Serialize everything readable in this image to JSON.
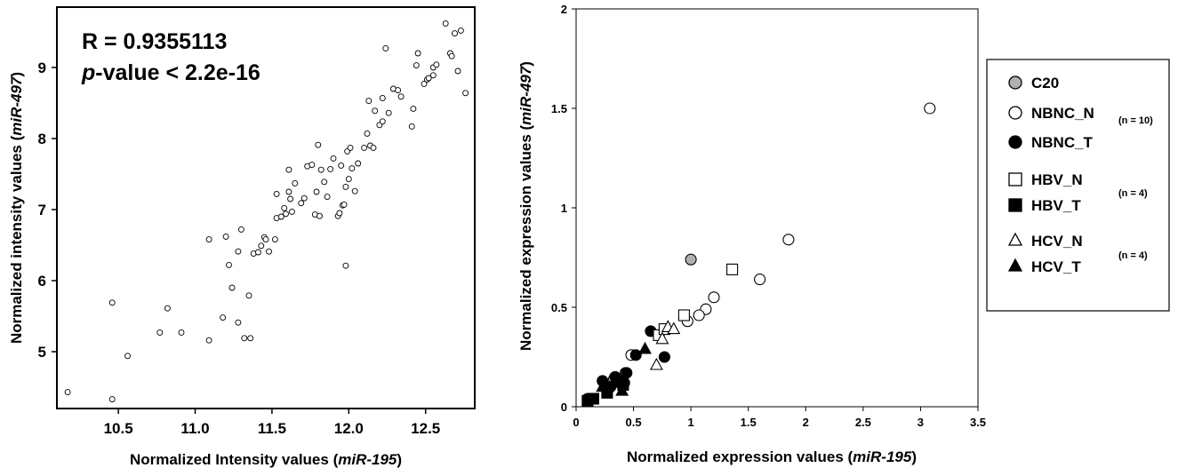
{
  "chart_data": [
    {
      "type": "scatter",
      "title": "",
      "xlabel_prefix": "Normalized Intensity values (",
      "xlabel_italic": "miR-195",
      "xlabel_suffix": ")",
      "ylabel_prefix": "Normalized intensity values (",
      "ylabel_italic": "miR-497",
      "ylabel_suffix": ")",
      "xlim": [
        10.1,
        12.82
      ],
      "ylim": [
        4.2,
        9.85
      ],
      "xticks": [
        10.5,
        11.0,
        11.5,
        12.0,
        12.5
      ],
      "xtick_labels": [
        "10.5",
        "11.0",
        "11.5",
        "12.0",
        "12.5"
      ],
      "yticks": [
        5,
        6,
        7,
        8,
        9
      ],
      "ytick_labels": [
        "5",
        "6",
        "7",
        "8",
        "9"
      ],
      "grid": false,
      "annotation_r": "R = 0.9355113",
      "annotation_p_italic": "p",
      "annotation_p_rest": "-value < 2.2e-16",
      "marker": "open-circle",
      "points": [
        [
          10.17,
          4.43
        ],
        [
          10.46,
          4.33
        ],
        [
          10.46,
          5.69
        ],
        [
          10.56,
          4.94
        ],
        [
          10.77,
          5.27
        ],
        [
          10.82,
          5.61
        ],
        [
          10.91,
          5.27
        ],
        [
          11.09,
          5.16
        ],
        [
          11.09,
          6.58
        ],
        [
          11.18,
          5.48
        ],
        [
          11.2,
          6.62
        ],
        [
          11.22,
          6.22
        ],
        [
          11.24,
          5.9
        ],
        [
          11.28,
          5.41
        ],
        [
          11.28,
          6.41
        ],
        [
          11.3,
          6.72
        ],
        [
          11.32,
          5.19
        ],
        [
          11.35,
          5.79
        ],
        [
          11.36,
          5.19
        ],
        [
          11.38,
          6.38
        ],
        [
          11.41,
          6.4
        ],
        [
          11.43,
          6.49
        ],
        [
          11.45,
          6.61
        ],
        [
          11.46,
          6.58
        ],
        [
          11.48,
          6.41
        ],
        [
          11.52,
          6.58
        ],
        [
          11.53,
          6.88
        ],
        [
          11.53,
          7.22
        ],
        [
          11.56,
          6.9
        ],
        [
          11.58,
          7.02
        ],
        [
          11.59,
          6.94
        ],
        [
          11.61,
          7.25
        ],
        [
          11.61,
          7.56
        ],
        [
          11.62,
          7.15
        ],
        [
          11.63,
          6.97
        ],
        [
          11.65,
          7.37
        ],
        [
          11.69,
          7.09
        ],
        [
          11.71,
          7.16
        ],
        [
          11.73,
          7.61
        ],
        [
          11.76,
          7.63
        ],
        [
          11.78,
          6.93
        ],
        [
          11.79,
          7.25
        ],
        [
          11.8,
          7.91
        ],
        [
          11.81,
          6.91
        ],
        [
          11.82,
          7.56
        ],
        [
          11.84,
          7.39
        ],
        [
          11.86,
          7.18
        ],
        [
          11.88,
          7.57
        ],
        [
          11.9,
          7.72
        ],
        [
          11.93,
          6.91
        ],
        [
          11.94,
          6.95
        ],
        [
          11.95,
          7.62
        ],
        [
          11.96,
          7.06
        ],
        [
          11.97,
          7.07
        ],
        [
          11.98,
          6.21
        ],
        [
          11.98,
          7.32
        ],
        [
          11.99,
          7.82
        ],
        [
          12.0,
          7.43
        ],
        [
          12.01,
          7.87
        ],
        [
          12.02,
          7.58
        ],
        [
          12.04,
          7.26
        ],
        [
          12.06,
          7.65
        ],
        [
          12.1,
          7.87
        ],
        [
          12.12,
          8.07
        ],
        [
          12.13,
          8.53
        ],
        [
          12.14,
          7.9
        ],
        [
          12.16,
          7.87
        ],
        [
          12.17,
          8.39
        ],
        [
          12.2,
          8.19
        ],
        [
          12.22,
          8.24
        ],
        [
          12.22,
          8.57
        ],
        [
          12.24,
          9.27
        ],
        [
          12.26,
          8.36
        ],
        [
          12.29,
          8.7
        ],
        [
          12.32,
          8.68
        ],
        [
          12.34,
          8.59
        ],
        [
          12.41,
          8.17
        ],
        [
          12.42,
          8.42
        ],
        [
          12.44,
          9.03
        ],
        [
          12.45,
          9.2
        ],
        [
          12.49,
          8.77
        ],
        [
          12.51,
          8.83
        ],
        [
          12.52,
          8.85
        ],
        [
          12.55,
          8.89
        ],
        [
          12.55,
          9.0
        ],
        [
          12.57,
          9.04
        ],
        [
          12.63,
          9.62
        ],
        [
          12.66,
          9.2
        ],
        [
          12.67,
          9.16
        ],
        [
          12.69,
          9.48
        ],
        [
          12.71,
          8.95
        ],
        [
          12.73,
          9.52
        ],
        [
          12.76,
          8.64
        ]
      ]
    },
    {
      "type": "scatter",
      "title": "",
      "xlabel_prefix": "Normalized expression values (",
      "xlabel_italic": "miR-195",
      "xlabel_suffix": ")",
      "ylabel_prefix": "Normalized expression values (",
      "ylabel_italic": "miR-497",
      "ylabel_suffix": ")",
      "xlim": [
        0,
        3.5
      ],
      "ylim": [
        0,
        2
      ],
      "xticks": [
        0,
        0.5,
        1,
        1.5,
        2,
        2.5,
        3,
        3.5
      ],
      "xtick_labels": [
        "0",
        "0.5",
        "1",
        "1.5",
        "2",
        "2.5",
        "3",
        "3.5"
      ],
      "yticks": [
        0,
        0.5,
        1,
        1.5,
        2
      ],
      "ytick_labels": [
        "0",
        "0.5",
        "1",
        "1.5",
        "2"
      ],
      "grid": false,
      "legend_position": "right, outside plot",
      "series": [
        {
          "name": "C20",
          "marker": "circle",
          "fill": "#b0b0b0",
          "points": [
            [
              1.0,
              0.74
            ]
          ]
        },
        {
          "name": "NBNC_N",
          "marker": "circle",
          "fill": "#ffffff",
          "points": [
            [
              3.08,
              1.5
            ],
            [
              1.85,
              0.84
            ],
            [
              1.6,
              0.64
            ],
            [
              1.2,
              0.55
            ],
            [
              1.13,
              0.49
            ],
            [
              1.07,
              0.46
            ],
            [
              0.97,
              0.43
            ],
            [
              0.48,
              0.26
            ],
            [
              0.43,
              0.17
            ],
            [
              0.33,
              0.14
            ]
          ]
        },
        {
          "name": "NBNC_T",
          "marker": "circle",
          "fill": "#000000",
          "points": [
            [
              0.1,
              0.04
            ],
            [
              0.23,
              0.13
            ],
            [
              0.3,
              0.1
            ],
            [
              0.34,
              0.15
            ],
            [
              0.4,
              0.13
            ],
            [
              0.44,
              0.17
            ],
            [
              0.52,
              0.26
            ],
            [
              0.65,
              0.38
            ],
            [
              0.77,
              0.25
            ],
            [
              0.42,
              0.12
            ]
          ]
        },
        {
          "name": "HBV_N",
          "marker": "square",
          "fill": "#ffffff",
          "points": [
            [
              0.72,
              0.36
            ],
            [
              0.77,
              0.39
            ],
            [
              0.94,
              0.46
            ],
            [
              1.36,
              0.69
            ]
          ]
        },
        {
          "name": "HBV_T",
          "marker": "square",
          "fill": "#000000",
          "points": [
            [
              0.1,
              0.03
            ],
            [
              0.15,
              0.04
            ],
            [
              0.27,
              0.07
            ],
            [
              0.41,
              0.11
            ]
          ]
        },
        {
          "name": "HCV_N",
          "marker": "triangle",
          "fill": "#ffffff",
          "points": [
            [
              0.7,
              0.21
            ],
            [
              0.75,
              0.34
            ],
            [
              0.8,
              0.4
            ],
            [
              0.85,
              0.39
            ]
          ]
        },
        {
          "name": "HCV_T",
          "marker": "triangle",
          "fill": "#000000",
          "points": [
            [
              0.23,
              0.1
            ],
            [
              0.4,
              0.08
            ],
            [
              0.6,
              0.29
            ],
            [
              0.35,
              0.12
            ]
          ]
        }
      ],
      "legend_groups": [
        {
          "series": [
            "C20"
          ],
          "note": ""
        },
        {
          "series": [
            "NBNC_N",
            "NBNC_T"
          ],
          "note": "(n = 10)"
        },
        {
          "series": [
            "HBV_N",
            "HBV_T"
          ],
          "note": "(n = 4)"
        },
        {
          "series": [
            "HCV_N",
            "HCV_T"
          ],
          "note": "(n = 4)"
        }
      ]
    }
  ]
}
